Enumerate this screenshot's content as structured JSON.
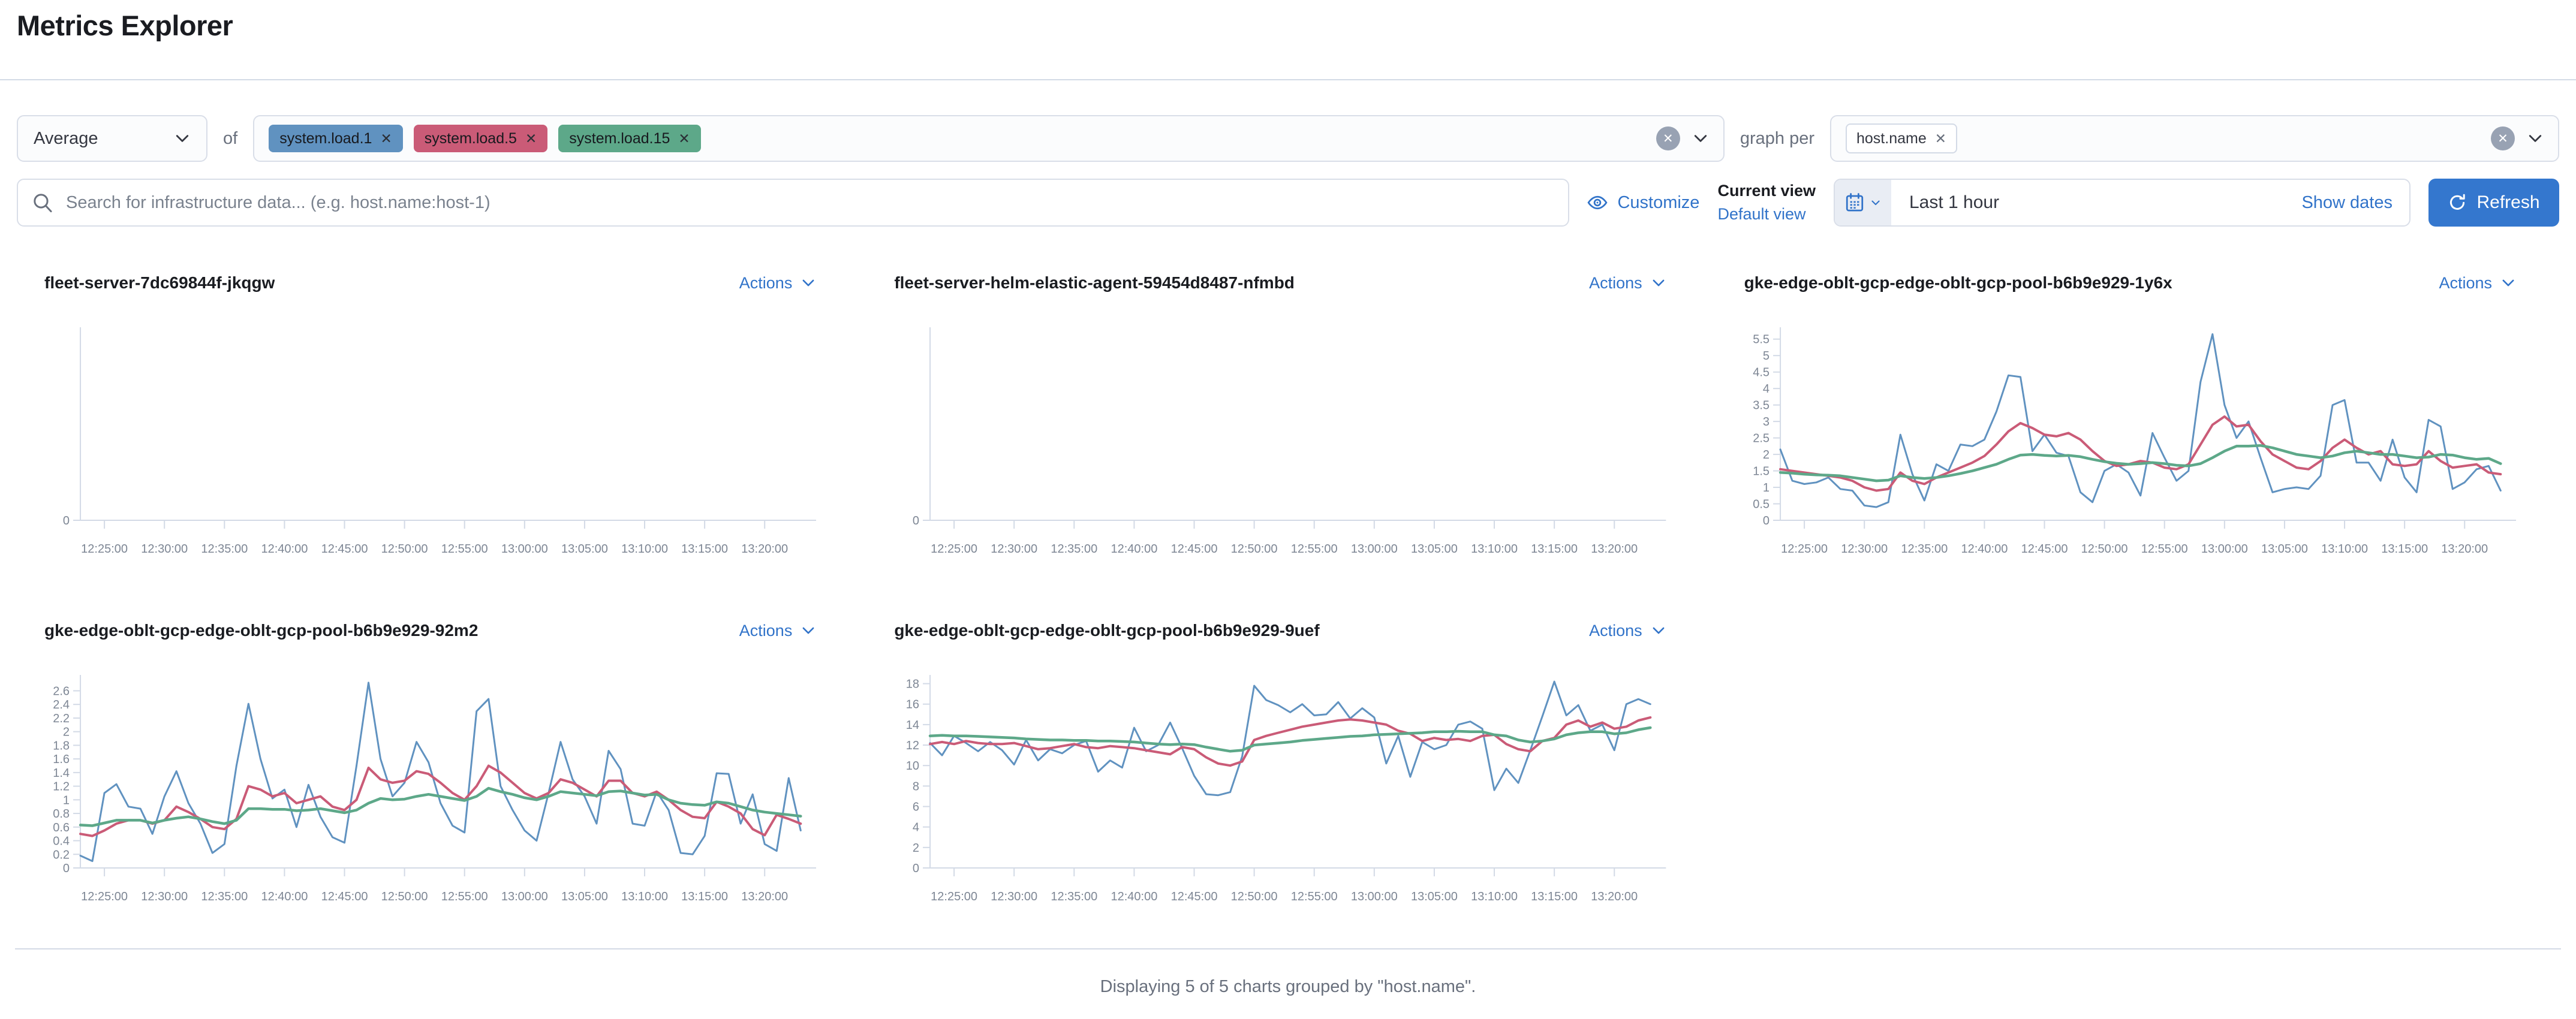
{
  "header": {
    "title": "Metrics Explorer"
  },
  "colors": {
    "link": "#3173C9",
    "button_primary": "#3477CE",
    "axis": "#D3DAE6",
    "tick_text": "#7D8694",
    "series_blue": "#6092C0",
    "series_pink": "#CA5B77",
    "series_green": "#5DA889"
  },
  "toolbar": {
    "aggregation": {
      "value": "Average"
    },
    "of_label": "of",
    "metrics": [
      {
        "label": "system.load.1",
        "color": "#6092C0"
      },
      {
        "label": "system.load.5",
        "color": "#CA5B77"
      },
      {
        "label": "system.load.15",
        "color": "#5DA889"
      }
    ],
    "graph_per_label": "graph per",
    "group_by": [
      {
        "label": "host.name"
      }
    ]
  },
  "search": {
    "placeholder": "Search for infrastructure data... (e.g. host.name:host-1)"
  },
  "actions_bar": {
    "customize_label": "Customize",
    "current_view_label": "Current view",
    "default_view_label": "Default view",
    "time_range": "Last 1 hour",
    "show_dates_label": "Show dates",
    "refresh_label": "Refresh"
  },
  "footer": {
    "summary": "Displaying 5 of 5 charts grouped by \"host.name\"."
  },
  "charts_common": {
    "actions_label": "Actions",
    "x_domain": [
      "12:23:00",
      "13:23:00"
    ],
    "x_ticks": [
      "12:25:00",
      "12:30:00",
      "12:35:00",
      "12:40:00",
      "12:45:00",
      "12:50:00",
      "12:55:00",
      "13:00:00",
      "13:05:00",
      "13:10:00",
      "13:15:00",
      "13:20:00"
    ]
  },
  "chart_data": [
    {
      "type": "line",
      "title": "fleet-server-7dc69844f-jkqgw",
      "y_ticks": [
        0
      ],
      "y_max": 1,
      "series": []
    },
    {
      "type": "line",
      "title": "fleet-server-helm-elastic-agent-59454d8487-nfmbd",
      "y_ticks": [
        0
      ],
      "y_max": 1,
      "series": []
    },
    {
      "type": "line",
      "title": "gke-edge-oblt-gcp-edge-oblt-gcp-pool-b6b9e929-1y6x",
      "y_ticks": [
        0,
        0.5,
        1,
        1.5,
        2,
        2.5,
        3,
        3.5,
        4,
        4.5,
        5,
        5.5
      ],
      "y_max": 5.75,
      "series": [
        {
          "name": "system.load.1",
          "color": "#6092C0",
          "values": [
            2.15,
            1.2,
            1.1,
            1.15,
            1.3,
            0.95,
            0.9,
            0.45,
            0.4,
            0.55,
            2.6,
            1.4,
            0.6,
            1.7,
            1.5,
            2.3,
            2.25,
            2.45,
            3.3,
            4.4,
            4.35,
            2.1,
            2.6,
            2.05,
            1.95,
            0.85,
            0.55,
            1.5,
            1.7,
            1.45,
            0.75,
            2.65,
            1.9,
            1.2,
            1.5,
            4.2,
            5.65,
            3.5,
            2.5,
            3.0,
            1.9,
            0.85,
            0.95,
            1.0,
            0.95,
            1.35,
            3.5,
            3.65,
            1.75,
            1.75,
            1.2,
            2.45,
            1.3,
            0.85,
            3.05,
            2.85,
            0.95,
            1.15,
            1.55,
            1.65,
            0.9
          ]
        },
        {
          "name": "system.load.5",
          "color": "#CA5B77",
          "values": [
            1.55,
            1.5,
            1.45,
            1.4,
            1.35,
            1.3,
            1.2,
            1.0,
            0.9,
            0.95,
            1.45,
            1.2,
            1.1,
            1.3,
            1.45,
            1.6,
            1.75,
            1.95,
            2.3,
            2.7,
            2.95,
            2.8,
            2.6,
            2.55,
            2.65,
            2.45,
            2.1,
            1.8,
            1.65,
            1.7,
            1.8,
            1.75,
            1.6,
            1.55,
            1.7,
            2.3,
            2.9,
            3.15,
            2.85,
            2.9,
            2.4,
            2.0,
            1.8,
            1.6,
            1.55,
            1.8,
            2.2,
            2.45,
            2.2,
            2.0,
            2.1,
            1.7,
            1.65,
            1.7,
            2.1,
            1.8,
            1.6,
            1.65,
            1.7,
            1.45,
            1.4
          ]
        },
        {
          "name": "system.load.15",
          "color": "#5DA889",
          "values": [
            1.45,
            1.43,
            1.4,
            1.38,
            1.37,
            1.35,
            1.3,
            1.25,
            1.2,
            1.22,
            1.35,
            1.3,
            1.27,
            1.3,
            1.35,
            1.42,
            1.5,
            1.6,
            1.7,
            1.85,
            1.98,
            2.0,
            1.97,
            1.95,
            1.97,
            1.93,
            1.85,
            1.78,
            1.73,
            1.7,
            1.72,
            1.75,
            1.72,
            1.67,
            1.65,
            1.72,
            1.9,
            2.1,
            2.25,
            2.25,
            2.27,
            2.2,
            2.1,
            2.0,
            1.95,
            1.9,
            1.95,
            2.05,
            2.1,
            2.05,
            2.0,
            2.0,
            1.95,
            1.9,
            1.92,
            2.0,
            1.98,
            1.9,
            1.85,
            1.88,
            1.72
          ]
        }
      ]
    },
    {
      "type": "line",
      "title": "gke-edge-oblt-gcp-edge-oblt-gcp-pool-b6b9e929-92m2",
      "y_ticks": [
        0,
        0.2,
        0.4,
        0.6,
        0.8,
        1,
        1.2,
        1.4,
        1.6,
        1.8,
        2,
        2.2,
        2.4,
        2.6
      ],
      "y_max": 2.78,
      "series": [
        {
          "name": "system.load.1",
          "color": "#6092C0",
          "values": [
            0.18,
            0.1,
            1.1,
            1.23,
            0.9,
            0.87,
            0.5,
            1.05,
            1.42,
            0.95,
            0.65,
            0.22,
            0.35,
            1.5,
            2.41,
            1.6,
            1.02,
            1.15,
            0.6,
            1.22,
            0.75,
            0.45,
            0.37,
            1.5,
            2.72,
            1.6,
            1.05,
            1.25,
            1.85,
            1.55,
            0.95,
            0.62,
            0.52,
            2.3,
            2.48,
            1.2,
            0.85,
            0.55,
            0.4,
            1.1,
            1.85,
            1.3,
            1.05,
            0.65,
            1.72,
            1.45,
            0.65,
            0.62,
            1.12,
            0.85,
            0.22,
            0.2,
            0.47,
            1.39,
            1.38,
            0.65,
            1.08,
            0.35,
            0.25,
            1.32,
            0.55
          ]
        },
        {
          "name": "system.load.5",
          "color": "#CA5B77",
          "values": [
            0.5,
            0.47,
            0.55,
            0.65,
            0.7,
            0.7,
            0.65,
            0.7,
            0.9,
            0.82,
            0.72,
            0.6,
            0.57,
            0.72,
            1.2,
            1.15,
            1.05,
            1.1,
            0.95,
            1.0,
            1.05,
            0.9,
            0.85,
            1.0,
            1.47,
            1.3,
            1.25,
            1.28,
            1.42,
            1.38,
            1.25,
            1.1,
            1.0,
            1.2,
            1.5,
            1.4,
            1.25,
            1.1,
            1.02,
            1.1,
            1.3,
            1.25,
            1.15,
            1.05,
            1.28,
            1.28,
            1.1,
            1.05,
            1.12,
            1.0,
            0.85,
            0.75,
            0.73,
            0.97,
            0.9,
            0.8,
            0.57,
            0.48,
            0.78,
            0.72,
            0.65
          ]
        },
        {
          "name": "system.load.15",
          "color": "#5DA889",
          "values": [
            0.63,
            0.62,
            0.66,
            0.7,
            0.7,
            0.7,
            0.66,
            0.7,
            0.73,
            0.75,
            0.72,
            0.68,
            0.65,
            0.7,
            0.87,
            0.87,
            0.86,
            0.86,
            0.84,
            0.85,
            0.87,
            0.84,
            0.81,
            0.85,
            0.95,
            1.02,
            1.0,
            1.01,
            1.05,
            1.08,
            1.05,
            1.02,
            0.99,
            1.05,
            1.17,
            1.12,
            1.08,
            1.03,
            1.0,
            1.05,
            1.12,
            1.1,
            1.08,
            1.06,
            1.12,
            1.13,
            1.1,
            1.07,
            1.08,
            1.0,
            0.95,
            0.93,
            0.92,
            0.97,
            0.95,
            0.9,
            0.85,
            0.82,
            0.8,
            0.78,
            0.76
          ]
        }
      ]
    },
    {
      "type": "line",
      "title": "gke-edge-oblt-gcp-edge-oblt-gcp-pool-b6b9e929-9uef",
      "y_ticks": [
        0,
        2,
        4,
        6,
        8,
        10,
        12,
        14,
        16,
        18
      ],
      "y_max": 18.5,
      "series": [
        {
          "name": "system.load.1",
          "color": "#6092C0",
          "values": [
            12.2,
            11.0,
            12.9,
            12.2,
            11.4,
            12.3,
            11.5,
            10.1,
            12.5,
            10.5,
            11.6,
            11.2,
            12.0,
            12.4,
            9.4,
            10.5,
            9.8,
            13.7,
            11.4,
            12.0,
            14.2,
            11.7,
            9.0,
            7.2,
            7.1,
            7.4,
            10.9,
            17.8,
            16.4,
            15.9,
            15.2,
            16.0,
            14.9,
            15.0,
            16.2,
            14.6,
            15.6,
            14.7,
            10.2,
            12.9,
            8.9,
            12.3,
            11.6,
            12.0,
            14.0,
            14.3,
            13.6,
            7.6,
            9.7,
            8.3,
            11.5,
            14.8,
            18.2,
            14.9,
            15.9,
            13.4,
            14.0,
            11.5,
            16.0,
            16.5,
            16.0
          ]
        },
        {
          "name": "system.load.5",
          "color": "#CA5B77",
          "values": [
            12.1,
            12.3,
            12.1,
            12.4,
            12.2,
            12.1,
            12.1,
            12.2,
            11.9,
            11.6,
            11.7,
            11.9,
            12.1,
            11.8,
            11.7,
            11.9,
            11.8,
            11.7,
            11.5,
            11.3,
            11.1,
            11.8,
            11.6,
            10.8,
            10.2,
            10.0,
            10.4,
            12.5,
            12.9,
            13.2,
            13.5,
            13.8,
            14.0,
            14.2,
            14.4,
            14.5,
            14.4,
            14.2,
            14.0,
            13.4,
            13.1,
            12.4,
            12.7,
            12.5,
            12.6,
            12.4,
            12.9,
            13.0,
            12.1,
            11.6,
            11.4,
            12.4,
            12.7,
            14.0,
            14.4,
            13.8,
            14.2,
            13.6,
            13.8,
            14.4,
            14.7
          ]
        },
        {
          "name": "system.load.15",
          "color": "#5DA889",
          "values": [
            12.9,
            12.95,
            12.9,
            12.9,
            12.85,
            12.8,
            12.75,
            12.7,
            12.6,
            12.55,
            12.5,
            12.5,
            12.45,
            12.45,
            12.4,
            12.4,
            12.35,
            12.3,
            12.2,
            12.1,
            12.05,
            12.1,
            12.05,
            11.8,
            11.6,
            11.4,
            11.5,
            12.0,
            12.1,
            12.2,
            12.3,
            12.45,
            12.55,
            12.65,
            12.75,
            12.85,
            12.9,
            13.0,
            13.05,
            13.1,
            13.15,
            13.2,
            13.3,
            13.3,
            13.35,
            13.3,
            13.3,
            13.0,
            12.9,
            12.5,
            12.3,
            12.4,
            12.6,
            13.0,
            13.2,
            13.3,
            13.3,
            13.1,
            13.2,
            13.5,
            13.7
          ]
        }
      ]
    }
  ]
}
